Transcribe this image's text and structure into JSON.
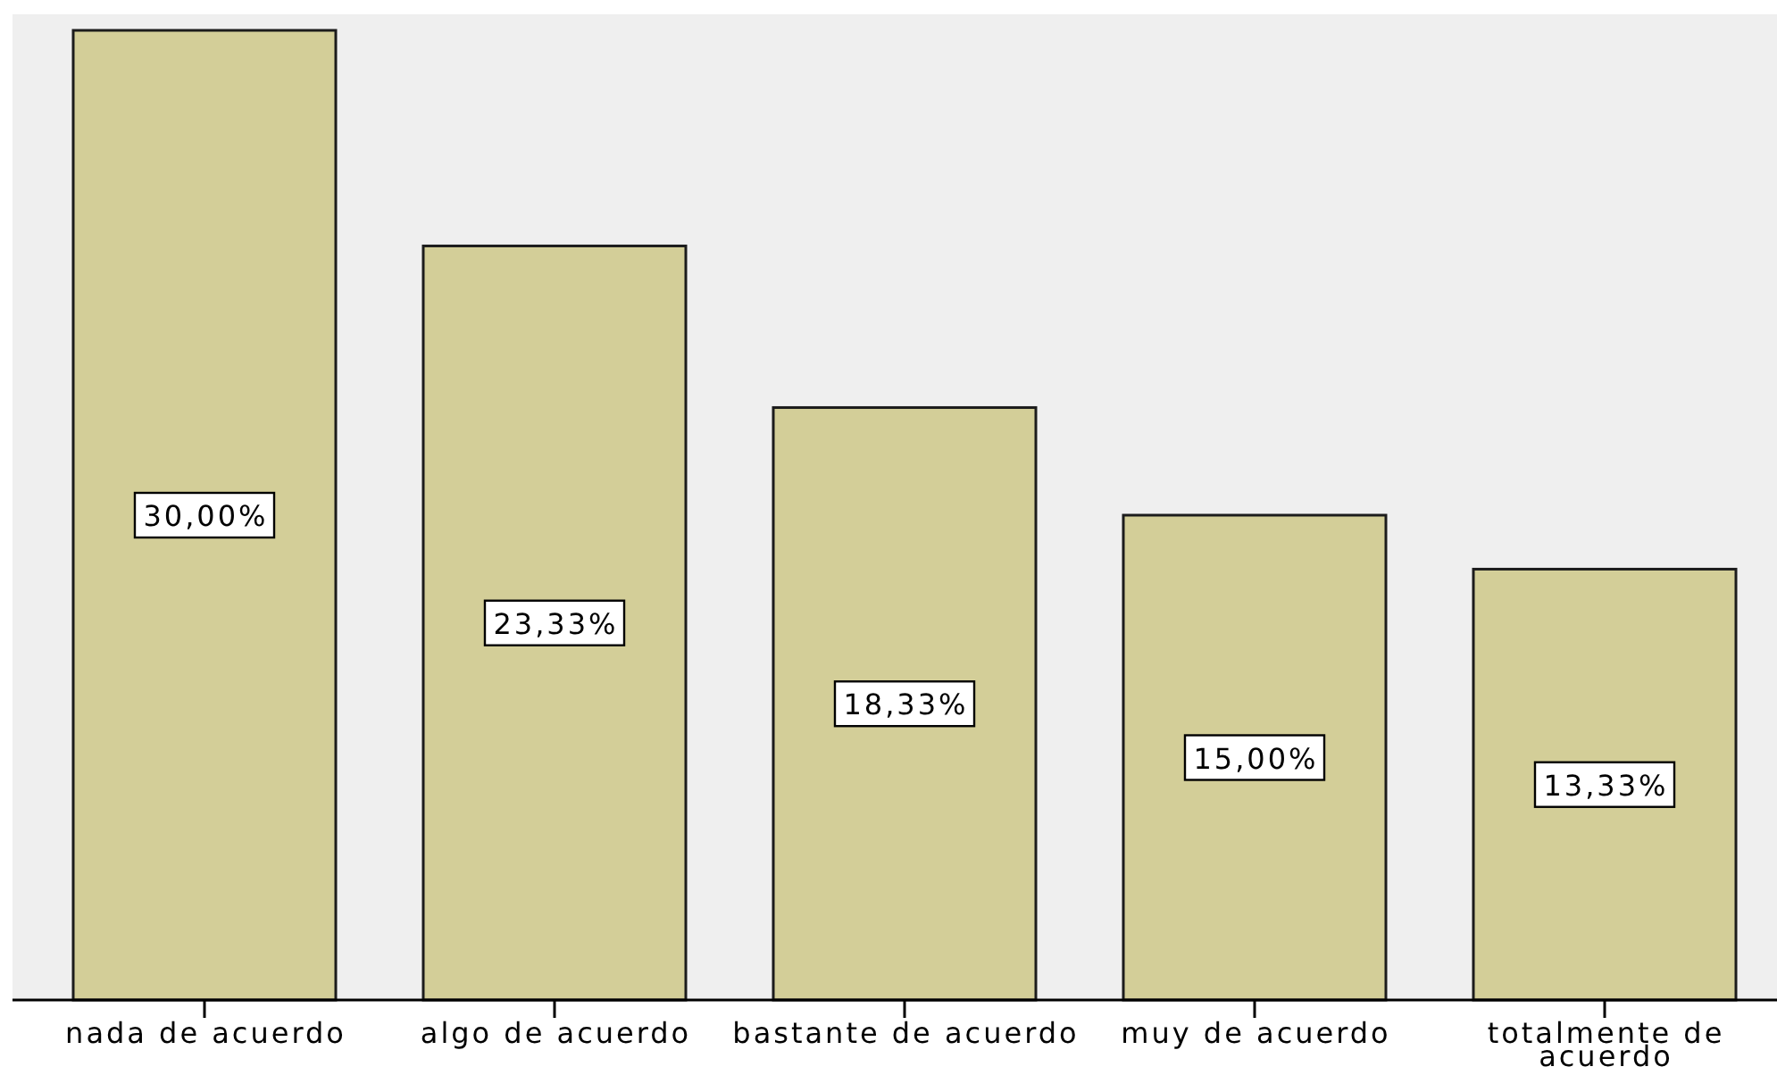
{
  "chart_data": {
    "type": "bar",
    "categories": [
      "nada de acuerdo",
      "algo de acuerdo",
      "bastante de acuerdo",
      "muy de acuerdo",
      "totalmente de acuerdo"
    ],
    "values": [
      30.0,
      23.33,
      18.33,
      15.0,
      13.33
    ],
    "color": "#d3ce98",
    "value_labels": [
      "30,00%",
      "23,33%",
      "18,33%",
      "15,00%",
      "13,33%"
    ]
  }
}
